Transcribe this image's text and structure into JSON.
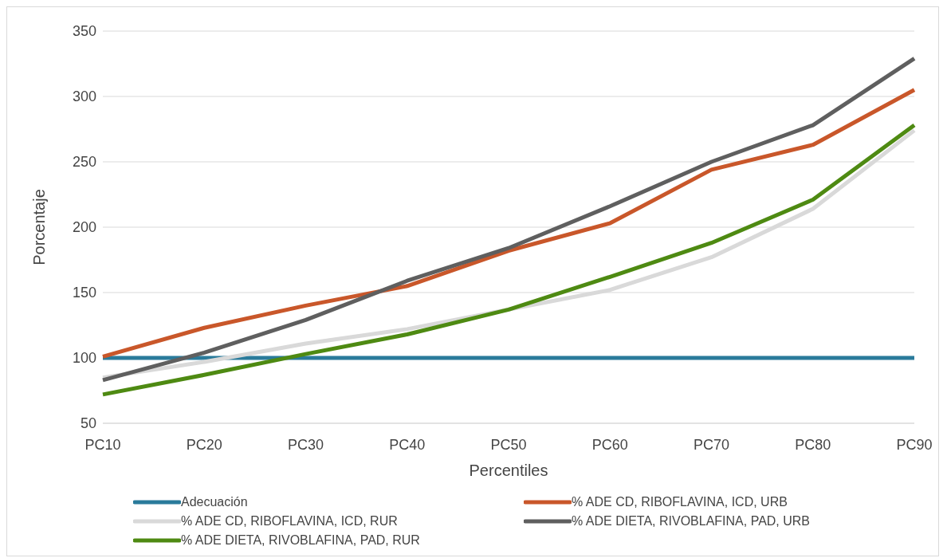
{
  "chart_data": {
    "type": "line",
    "xlabel": "Percentiles",
    "ylabel": "Porcentaje",
    "categories": [
      "PC10",
      "PC20",
      "PC30",
      "PC40",
      "PC50",
      "PC60",
      "PC70",
      "PC80",
      "PC90"
    ],
    "series": [
      {
        "name": "Adecuación",
        "color": "#2a7b9b",
        "values": [
          100,
          100,
          100,
          100,
          100,
          100,
          100,
          100,
          100
        ]
      },
      {
        "name": "% ADE CD, RIBOFLAVINA, ICD, URB",
        "color": "#c9572a",
        "values": [
          101,
          123,
          140,
          155,
          182,
          203,
          244,
          263,
          305
        ]
      },
      {
        "name": "% ADE CD, RIBOFLAVINA, ICD, RUR",
        "color": "#d9d9d9",
        "values": [
          85,
          97,
          111,
          122,
          137,
          152,
          177,
          214,
          274
        ]
      },
      {
        "name": "% ADE DIETA, RIVOBLAFINA, PAD, URB",
        "color": "#5f5f5f",
        "values": [
          83,
          104,
          129,
          159,
          184,
          216,
          250,
          278,
          329
        ]
      },
      {
        "name": "% ADE DIETA, RIVOBLAFINA, PAD, RUR",
        "color": "#4e8a12",
        "values": [
          72,
          87,
          103,
          118,
          137,
          162,
          188,
          221,
          278
        ]
      }
    ],
    "ylim": [
      50,
      350
    ],
    "yticks": [
      50,
      100,
      150,
      200,
      250,
      300,
      350
    ],
    "grid": "y",
    "legend": "bottom",
    "marker": "none",
    "line_style": "solid"
  }
}
